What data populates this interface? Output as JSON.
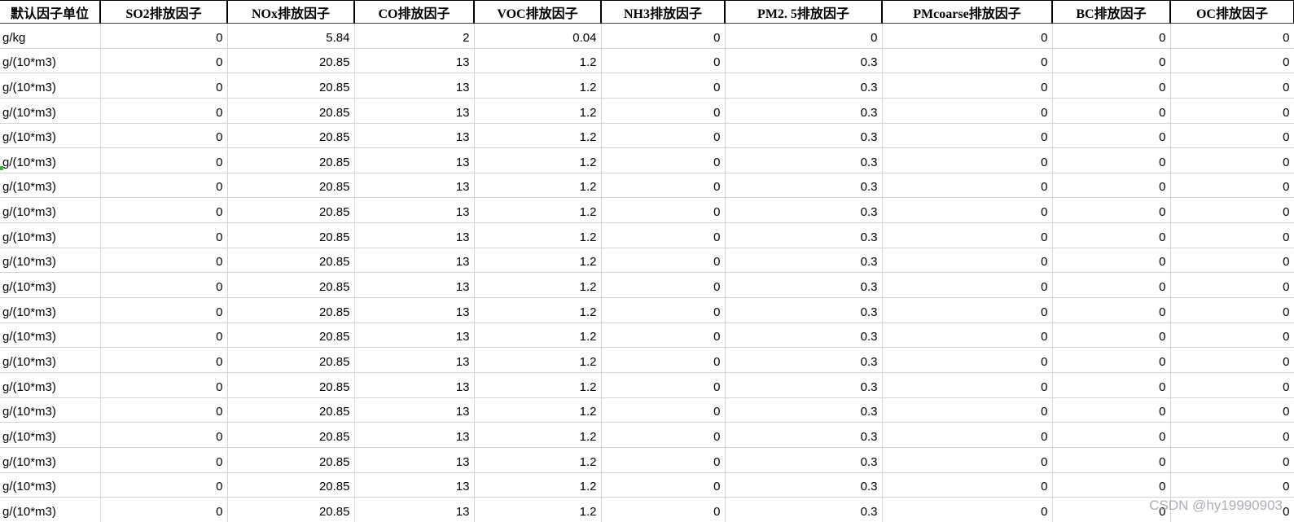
{
  "table": {
    "columns": [
      {
        "key": "unit",
        "label": "默认因子单位"
      },
      {
        "key": "so2",
        "label": "SO2排放因子"
      },
      {
        "key": "nox",
        "label": "NOx排放因子"
      },
      {
        "key": "co",
        "label": "CO排放因子"
      },
      {
        "key": "voc",
        "label": "VOC排放因子"
      },
      {
        "key": "nh3",
        "label": "NH3排放因子"
      },
      {
        "key": "pm25",
        "label": "PM2. 5排放因子"
      },
      {
        "key": "pmcoarse",
        "label": "PMcoarse排放因子"
      },
      {
        "key": "bc",
        "label": "BC排放因子"
      },
      {
        "key": "oc",
        "label": "OC排放因子"
      }
    ],
    "rows": [
      {
        "unit": "g/kg",
        "values": [
          "0",
          "5.84",
          "2",
          "0.04",
          "0",
          "0",
          "0",
          "0",
          "0"
        ]
      },
      {
        "unit": "g/(10*m3)",
        "values": [
          "0",
          "20.85",
          "13",
          "1.2",
          "0",
          "0.3",
          "0",
          "0",
          "0"
        ]
      },
      {
        "unit": "g/(10*m3)",
        "values": [
          "0",
          "20.85",
          "13",
          "1.2",
          "0",
          "0.3",
          "0",
          "0",
          "0"
        ]
      },
      {
        "unit": "g/(10*m3)",
        "values": [
          "0",
          "20.85",
          "13",
          "1.2",
          "0",
          "0.3",
          "0",
          "0",
          "0"
        ]
      },
      {
        "unit": "g/(10*m3)",
        "values": [
          "0",
          "20.85",
          "13",
          "1.2",
          "0",
          "0.3",
          "0",
          "0",
          "0"
        ]
      },
      {
        "unit": "g/(10*m3)",
        "values": [
          "0",
          "20.85",
          "13",
          "1.2",
          "0",
          "0.3",
          "0",
          "0",
          "0"
        ]
      },
      {
        "unit": "g/(10*m3)",
        "values": [
          "0",
          "20.85",
          "13",
          "1.2",
          "0",
          "0.3",
          "0",
          "0",
          "0"
        ]
      },
      {
        "unit": "g/(10*m3)",
        "values": [
          "0",
          "20.85",
          "13",
          "1.2",
          "0",
          "0.3",
          "0",
          "0",
          "0"
        ]
      },
      {
        "unit": "g/(10*m3)",
        "values": [
          "0",
          "20.85",
          "13",
          "1.2",
          "0",
          "0.3",
          "0",
          "0",
          "0"
        ]
      },
      {
        "unit": "g/(10*m3)",
        "values": [
          "0",
          "20.85",
          "13",
          "1.2",
          "0",
          "0.3",
          "0",
          "0",
          "0"
        ]
      },
      {
        "unit": "g/(10*m3)",
        "values": [
          "0",
          "20.85",
          "13",
          "1.2",
          "0",
          "0.3",
          "0",
          "0",
          "0"
        ]
      },
      {
        "unit": "g/(10*m3)",
        "values": [
          "0",
          "20.85",
          "13",
          "1.2",
          "0",
          "0.3",
          "0",
          "0",
          "0"
        ]
      },
      {
        "unit": "g/(10*m3)",
        "values": [
          "0",
          "20.85",
          "13",
          "1.2",
          "0",
          "0.3",
          "0",
          "0",
          "0"
        ]
      },
      {
        "unit": "g/(10*m3)",
        "values": [
          "0",
          "20.85",
          "13",
          "1.2",
          "0",
          "0.3",
          "0",
          "0",
          "0"
        ]
      },
      {
        "unit": "g/(10*m3)",
        "values": [
          "0",
          "20.85",
          "13",
          "1.2",
          "0",
          "0.3",
          "0",
          "0",
          "0"
        ]
      },
      {
        "unit": "g/(10*m3)",
        "values": [
          "0",
          "20.85",
          "13",
          "1.2",
          "0",
          "0.3",
          "0",
          "0",
          "0"
        ]
      },
      {
        "unit": "g/(10*m3)",
        "values": [
          "0",
          "20.85",
          "13",
          "1.2",
          "0",
          "0.3",
          "0",
          "0",
          "0"
        ]
      },
      {
        "unit": "g/(10*m3)",
        "values": [
          "0",
          "20.85",
          "13",
          "1.2",
          "0",
          "0.3",
          "0",
          "0",
          "0"
        ]
      },
      {
        "unit": "g/(10*m3)",
        "values": [
          "0",
          "20.85",
          "13",
          "1.2",
          "0",
          "0.3",
          "0",
          "0",
          "0"
        ]
      },
      {
        "unit": "g/(10*m3)",
        "values": [
          "0",
          "20.85",
          "13",
          "1.2",
          "0",
          "0.3",
          "0",
          "0",
          "0"
        ]
      }
    ]
  },
  "watermark": {
    "text": "CSDN @hy19990903",
    "color": "#abaeb3"
  },
  "colors": {
    "grid_line": "#d4d4d4",
    "header_border": "#000000",
    "cell_text": "#000000",
    "background": "#ffffff",
    "marker_green": "#3faf3f"
  }
}
